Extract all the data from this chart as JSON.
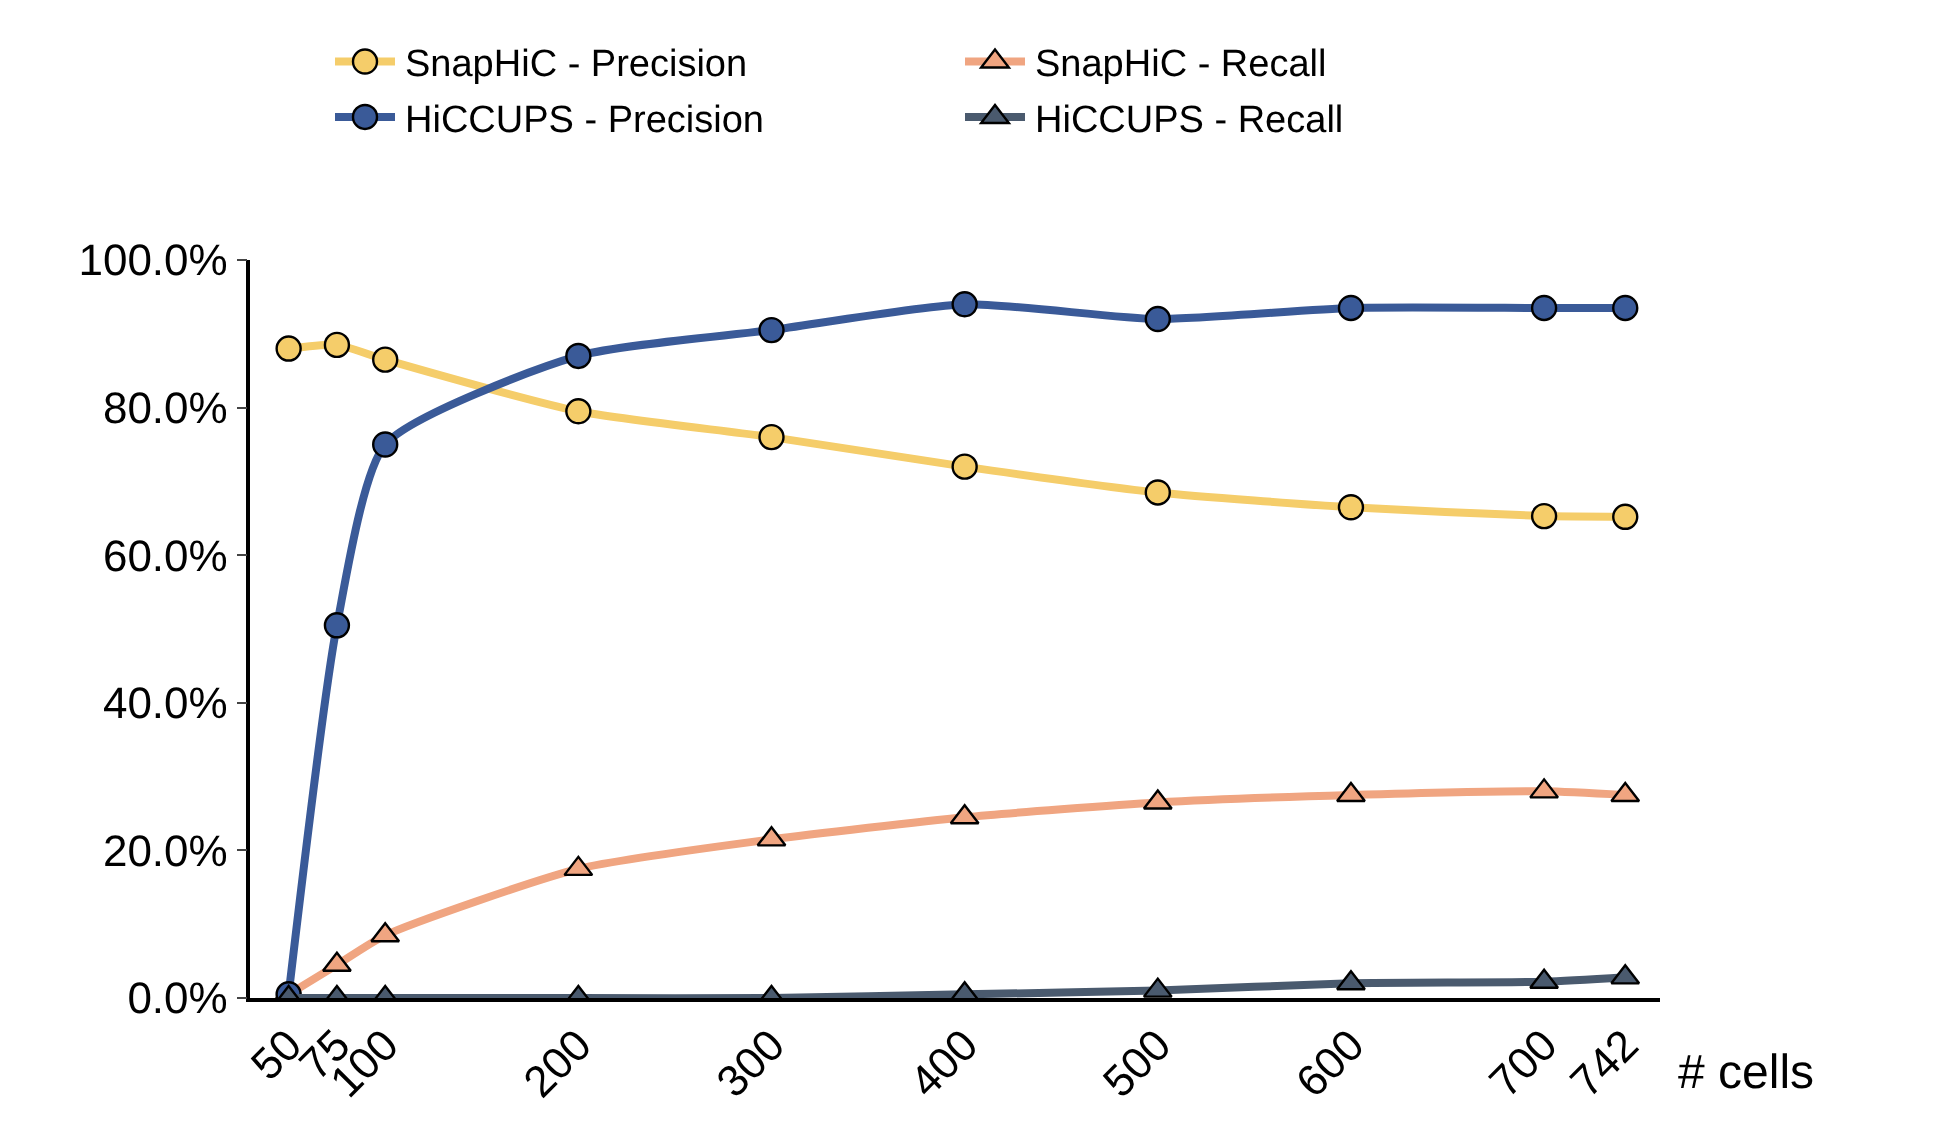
{
  "chart_data": {
    "type": "line",
    "xlabel": "# cells",
    "x": [
      50,
      75,
      100,
      200,
      300,
      400,
      500,
      600,
      700,
      742
    ],
    "series": [
      {
        "name": "SnapHiC - Precision",
        "color": "#f5cd6a",
        "marker": "circle",
        "values": [
          88,
          88.5,
          86.5,
          79.5,
          76,
          72,
          68.5,
          66.5,
          65.3,
          65.2
        ]
      },
      {
        "name": "SnapHiC - Recall",
        "color": "#f0a581",
        "marker": "triangle",
        "values": [
          0.5,
          4.5,
          8.5,
          17.5,
          21.5,
          24.5,
          26.5,
          27.5,
          28,
          27.5
        ]
      },
      {
        "name": "HiCCUPS - Precision",
        "color": "#3a5a98",
        "marker": "circle",
        "values": [
          0.5,
          50.5,
          75,
          87,
          90.5,
          94,
          92,
          93.5,
          93.5,
          93.5
        ]
      },
      {
        "name": "HiCCUPS - Recall",
        "color": "#4a5a6e",
        "marker": "triangle",
        "values": [
          0,
          0,
          0,
          0,
          0,
          0.5,
          1,
          2,
          2.2,
          2.8
        ]
      }
    ],
    "xlim": [
      30,
      760
    ],
    "xticks": [
      50,
      75,
      100,
      200,
      300,
      400,
      500,
      600,
      700,
      742
    ],
    "ylim": [
      0,
      100
    ],
    "yticks": [
      {
        "value": 0,
        "label": "0.0%"
      },
      {
        "value": 20,
        "label": "20.0%"
      },
      {
        "value": 40,
        "label": "40.0%"
      },
      {
        "value": 60,
        "label": "60.0%"
      },
      {
        "value": 80,
        "label": "80.0%"
      },
      {
        "value": 100,
        "label": "100.0%"
      }
    ],
    "legend": "top",
    "line_style": "solid"
  }
}
